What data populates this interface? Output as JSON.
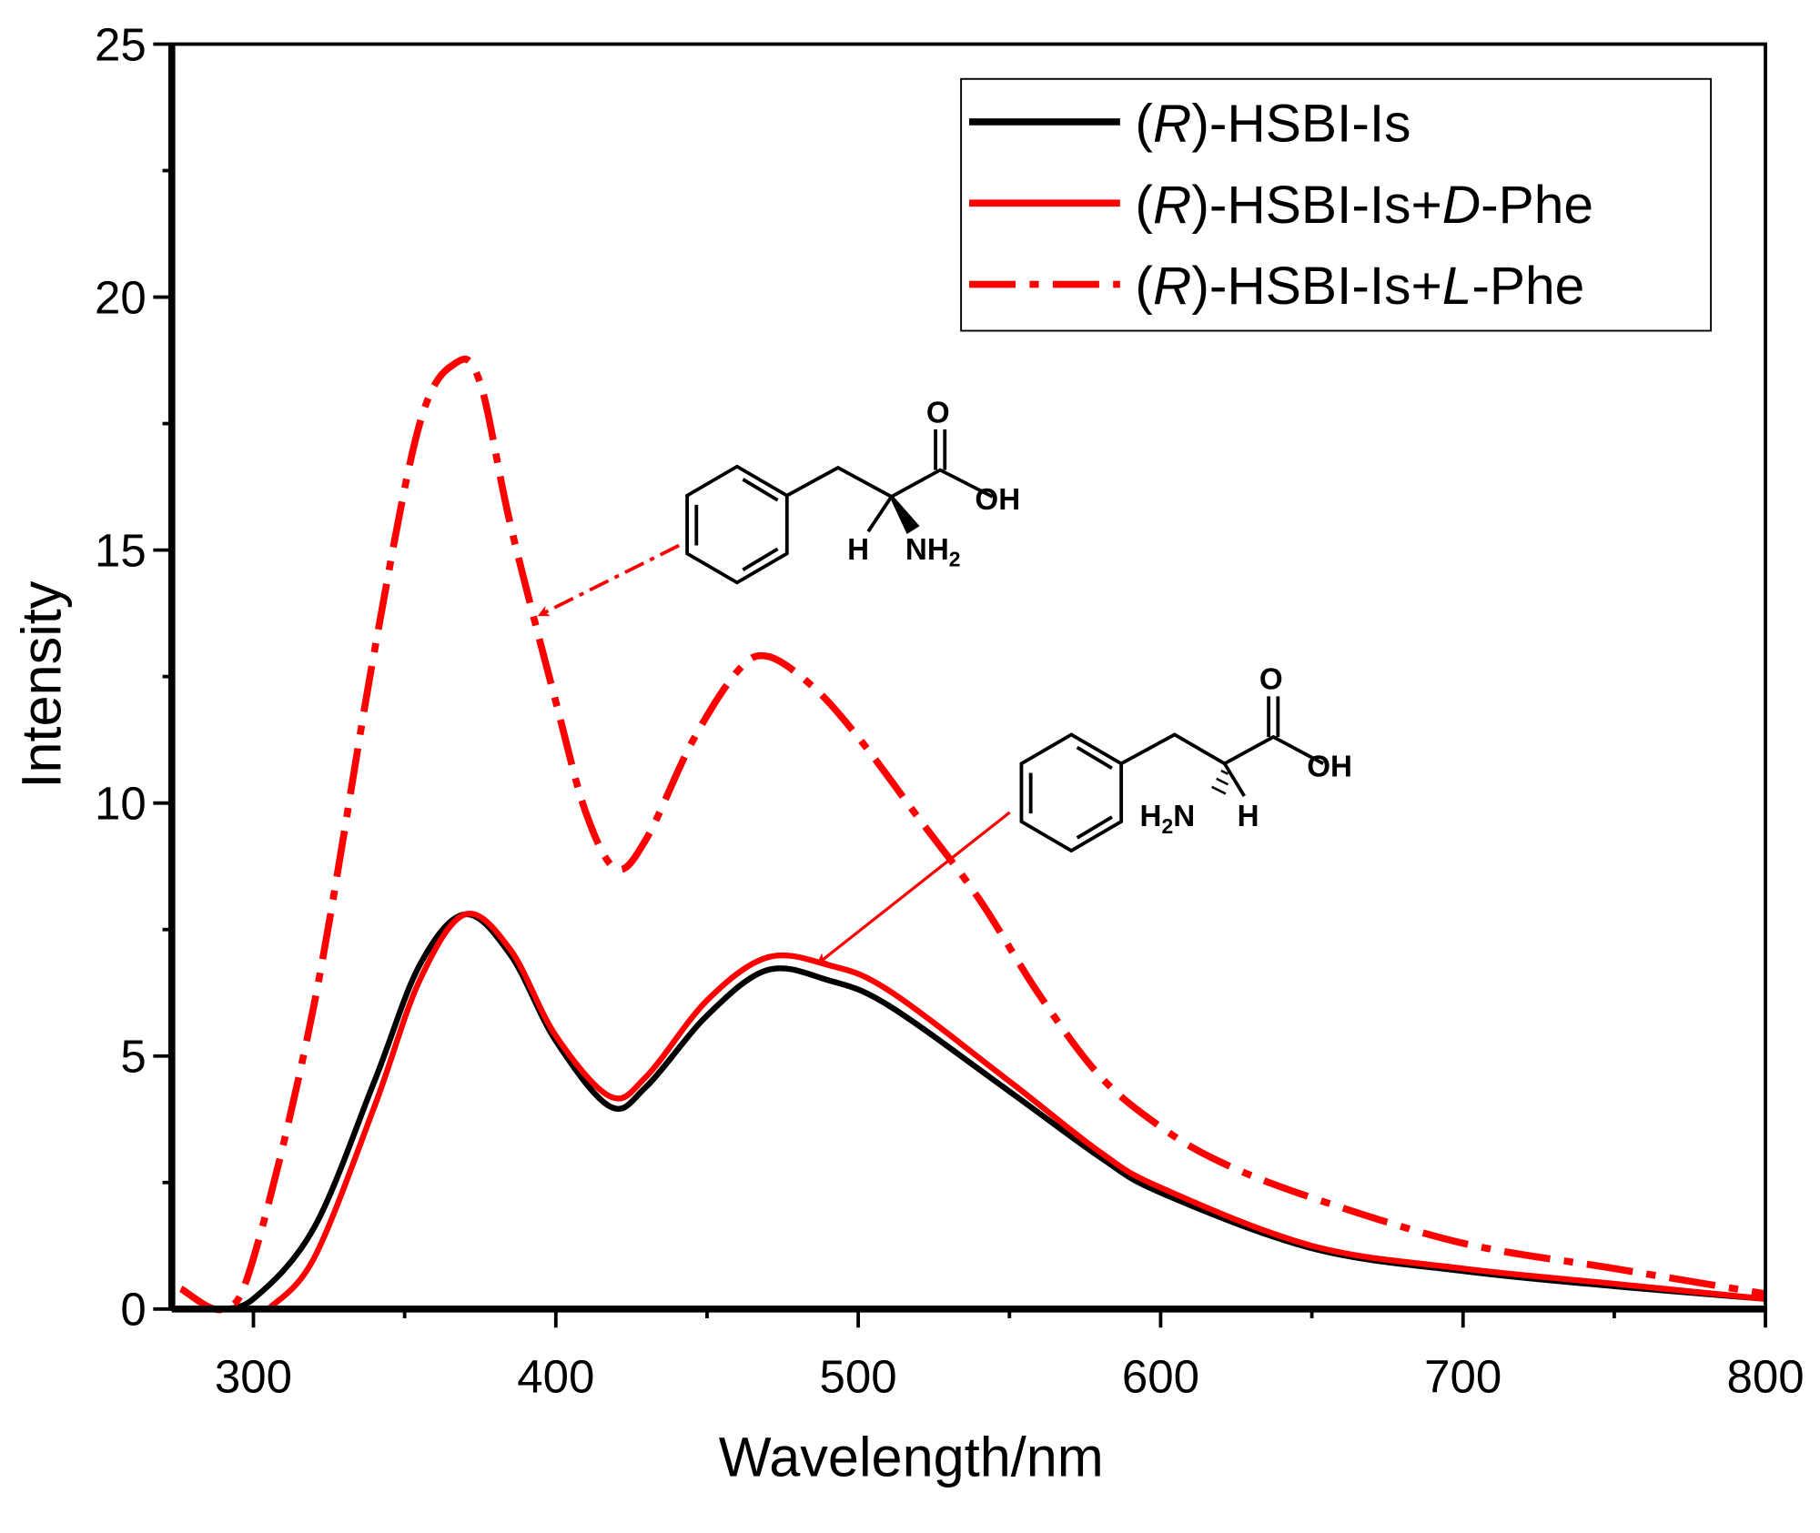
{
  "chart_data": {
    "type": "line",
    "xlabel": "Wavelength/nm",
    "ylabel": "Intensity",
    "xlim": [
      273,
      800
    ],
    "ylim": [
      0,
      25
    ],
    "xticks": [
      300,
      400,
      500,
      600,
      700,
      800
    ],
    "xtick_labels": [
      "300",
      "400",
      "500",
      "600",
      "700",
      "800"
    ],
    "yticks": [
      0,
      5,
      10,
      15,
      20,
      25
    ],
    "ytick_labels": [
      "0",
      "5",
      "10",
      "15",
      "20",
      "25"
    ],
    "grid": false,
    "legend_placement": "top-right",
    "series": [
      {
        "name": "(R)-HSBI-Is",
        "legend_parts": [
          "(",
          "R",
          ")-HSBI-Is",
          ""
        ],
        "color": "#000000",
        "style": "solid",
        "x": [
          288,
          300,
          320,
          340,
          355,
          370,
          385,
          400,
          418,
          430,
          450,
          470,
          490,
          510,
          550,
          580,
          600,
          650,
          700,
          750,
          800
        ],
        "y": [
          0,
          0.2,
          1.6,
          4.5,
          6.8,
          7.8,
          7.0,
          5.3,
          4.0,
          4.4,
          5.8,
          6.7,
          6.5,
          6.0,
          4.3,
          3.0,
          2.3,
          1.2,
          0.75,
          0.45,
          0.2
        ]
      },
      {
        "name": "(R)-HSBI-Is+D-Phe",
        "legend_parts": [
          "(",
          "R",
          ")-HSBI-Is+",
          "D",
          "-Phe"
        ],
        "color": "#ff0000",
        "style": "solid",
        "x": [
          305,
          320,
          340,
          355,
          370,
          385,
          400,
          418,
          430,
          450,
          470,
          490,
          510,
          550,
          580,
          600,
          650,
          700,
          750,
          800
        ],
        "y": [
          0,
          1.0,
          4.0,
          6.5,
          7.8,
          7.1,
          5.4,
          4.2,
          4.6,
          6.1,
          6.95,
          6.8,
          6.3,
          4.5,
          3.1,
          2.4,
          1.25,
          0.8,
          0.5,
          0.2
        ]
      },
      {
        "name": "(R)-HSBI-Is+L-Phe",
        "legend_parts": [
          "(",
          "R",
          ")-HSBI-Is+",
          "L",
          "-Phe"
        ],
        "color": "#ff0000",
        "style": "dash-dot",
        "x": [
          276,
          290,
          300,
          320,
          340,
          355,
          367,
          375,
          385,
          400,
          410,
          420,
          430,
          445,
          460,
          470,
          485,
          500,
          520,
          540,
          560,
          580,
          600,
          620,
          650,
          700,
          750,
          800
        ],
        "y": [
          0.4,
          0,
          1.0,
          6.0,
          13.0,
          17.5,
          18.7,
          18.3,
          15.5,
          12.0,
          9.8,
          8.7,
          9.3,
          11.2,
          12.6,
          12.9,
          12.3,
          11.3,
          9.7,
          8.1,
          6.2,
          4.6,
          3.6,
          2.9,
          2.2,
          1.3,
          0.8,
          0.3
        ]
      }
    ],
    "annotations": {
      "l_phe": {
        "o": "O",
        "oh": "OH",
        "h": "H",
        "nh": "NH",
        "sub": "2"
      },
      "d_phe": {
        "o": "O",
        "oh": "OH",
        "h": "H",
        "h2n_a": "H",
        "h2n_sub": "2",
        "h2n_b": "N"
      }
    }
  }
}
